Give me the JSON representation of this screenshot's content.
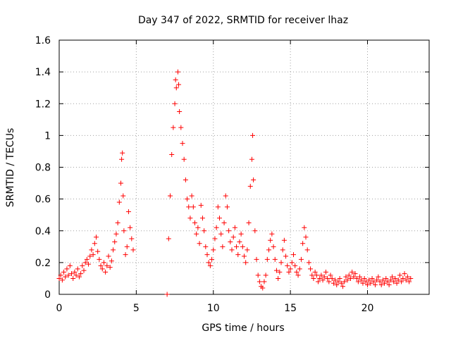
{
  "chart_data": {
    "type": "scatter",
    "title": "Day 347 of 2022, SRMTID for receiver lhaz",
    "xlabel": "GPS time / hours",
    "ylabel": "SRMTID / TECUs",
    "xlim": [
      0,
      24
    ],
    "ylim": [
      0,
      1.6
    ],
    "x_ticks": [
      "0",
      "5",
      "10",
      "15",
      "20"
    ],
    "x_tick_values": [
      0,
      5,
      10,
      15,
      20
    ],
    "y_ticks": [
      "0",
      "0.2",
      "0.4",
      "0.6",
      "0.8",
      "1",
      "1.2",
      "1.4",
      "1.6"
    ],
    "y_tick_values": [
      0,
      0.2,
      0.4,
      0.6,
      0.8,
      1.0,
      1.2,
      1.4,
      1.6
    ],
    "grid": true,
    "marker": "+",
    "series_color": "#ff0000",
    "series": [
      {
        "name": "SRMTID",
        "points": [
          [
            0.0,
            0.1
          ],
          [
            0.1,
            0.12
          ],
          [
            0.2,
            0.09
          ],
          [
            0.3,
            0.14
          ],
          [
            0.4,
            0.11
          ],
          [
            0.5,
            0.16
          ],
          [
            0.6,
            0.12
          ],
          [
            0.7,
            0.18
          ],
          [
            0.8,
            0.13
          ],
          [
            0.9,
            0.1
          ],
          [
            1.0,
            0.14
          ],
          [
            1.1,
            0.12
          ],
          [
            1.2,
            0.16
          ],
          [
            1.3,
            0.11
          ],
          [
            1.4,
            0.13
          ],
          [
            1.5,
            0.18
          ],
          [
            1.6,
            0.15
          ],
          [
            1.7,
            0.2
          ],
          [
            1.8,
            0.22
          ],
          [
            1.9,
            0.19
          ],
          [
            2.0,
            0.24
          ],
          [
            2.1,
            0.28
          ],
          [
            2.2,
            0.25
          ],
          [
            2.3,
            0.32
          ],
          [
            2.4,
            0.36
          ],
          [
            2.5,
            0.27
          ],
          [
            2.6,
            0.22
          ],
          [
            2.7,
            0.18
          ],
          [
            2.8,
            0.16
          ],
          [
            2.9,
            0.2
          ],
          [
            3.0,
            0.14
          ],
          [
            3.1,
            0.18
          ],
          [
            3.2,
            0.24
          ],
          [
            3.3,
            0.17
          ],
          [
            3.4,
            0.21
          ],
          [
            3.5,
            0.28
          ],
          [
            3.6,
            0.33
          ],
          [
            3.7,
            0.38
          ],
          [
            3.8,
            0.45
          ],
          [
            3.9,
            0.58
          ],
          [
            4.0,
            0.7
          ],
          [
            4.05,
            0.85
          ],
          [
            4.1,
            0.89
          ],
          [
            4.15,
            0.62
          ],
          [
            4.2,
            0.4
          ],
          [
            4.3,
            0.25
          ],
          [
            4.4,
            0.3
          ],
          [
            4.5,
            0.52
          ],
          [
            4.6,
            0.42
          ],
          [
            4.7,
            0.35
          ],
          [
            4.8,
            0.28
          ],
          [
            7.1,
            0.35
          ],
          [
            7.2,
            0.62
          ],
          [
            7.3,
            0.88
          ],
          [
            7.4,
            1.05
          ],
          [
            7.5,
            1.2
          ],
          [
            7.55,
            1.35
          ],
          [
            7.6,
            1.3
          ],
          [
            7.7,
            1.4
          ],
          [
            7.75,
            1.32
          ],
          [
            7.8,
            1.15
          ],
          [
            7.9,
            1.05
          ],
          [
            8.0,
            0.95
          ],
          [
            8.1,
            0.85
          ],
          [
            8.2,
            0.72
          ],
          [
            8.3,
            0.6
          ],
          [
            8.4,
            0.55
          ],
          [
            8.5,
            0.48
          ],
          [
            8.6,
            0.62
          ],
          [
            8.7,
            0.55
          ],
          [
            8.8,
            0.45
          ],
          [
            8.9,
            0.38
          ],
          [
            9.0,
            0.42
          ],
          [
            9.1,
            0.32
          ],
          [
            9.2,
            0.56
          ],
          [
            9.3,
            0.48
          ],
          [
            9.4,
            0.4
          ],
          [
            9.5,
            0.3
          ],
          [
            9.6,
            0.25
          ],
          [
            9.7,
            0.2
          ],
          [
            9.8,
            0.18
          ],
          [
            9.9,
            0.22
          ],
          [
            10.0,
            0.28
          ],
          [
            10.1,
            0.35
          ],
          [
            10.2,
            0.42
          ],
          [
            10.3,
            0.55
          ],
          [
            10.4,
            0.48
          ],
          [
            10.5,
            0.38
          ],
          [
            10.6,
            0.3
          ],
          [
            10.7,
            0.45
          ],
          [
            10.8,
            0.62
          ],
          [
            10.9,
            0.55
          ],
          [
            11.0,
            0.4
          ],
          [
            11.1,
            0.33
          ],
          [
            11.2,
            0.28
          ],
          [
            11.3,
            0.36
          ],
          [
            11.4,
            0.42
          ],
          [
            11.5,
            0.3
          ],
          [
            11.6,
            0.25
          ],
          [
            11.7,
            0.33
          ],
          [
            11.8,
            0.38
          ],
          [
            11.9,
            0.3
          ],
          [
            12.0,
            0.24
          ],
          [
            12.1,
            0.2
          ],
          [
            12.2,
            0.28
          ],
          [
            12.3,
            0.45
          ],
          [
            12.4,
            0.68
          ],
          [
            12.5,
            0.85
          ],
          [
            12.55,
            1.0
          ],
          [
            12.6,
            0.72
          ],
          [
            12.7,
            0.4
          ],
          [
            12.8,
            0.22
          ],
          [
            12.9,
            0.12
          ],
          [
            13.0,
            0.08
          ],
          [
            13.1,
            0.05
          ],
          [
            13.2,
            0.04
          ],
          [
            13.3,
            0.08
          ],
          [
            13.4,
            0.12
          ],
          [
            13.5,
            0.22
          ],
          [
            13.6,
            0.28
          ],
          [
            13.7,
            0.34
          ],
          [
            13.8,
            0.38
          ],
          [
            13.9,
            0.3
          ],
          [
            14.0,
            0.22
          ],
          [
            14.1,
            0.15
          ],
          [
            14.2,
            0.1
          ],
          [
            14.3,
            0.14
          ],
          [
            14.4,
            0.2
          ],
          [
            14.5,
            0.28
          ],
          [
            14.6,
            0.34
          ],
          [
            14.7,
            0.24
          ],
          [
            14.8,
            0.18
          ],
          [
            14.9,
            0.14
          ],
          [
            15.0,
            0.16
          ],
          [
            15.1,
            0.2
          ],
          [
            15.2,
            0.25
          ],
          [
            15.3,
            0.18
          ],
          [
            15.4,
            0.14
          ],
          [
            15.5,
            0.12
          ],
          [
            15.6,
            0.16
          ],
          [
            15.7,
            0.22
          ],
          [
            15.8,
            0.32
          ],
          [
            15.9,
            0.42
          ],
          [
            16.0,
            0.36
          ],
          [
            16.1,
            0.28
          ],
          [
            16.2,
            0.2
          ],
          [
            16.3,
            0.16
          ],
          [
            16.4,
            0.12
          ],
          [
            16.5,
            0.1
          ],
          [
            16.6,
            0.14
          ],
          [
            16.7,
            0.12
          ],
          [
            16.8,
            0.08
          ],
          [
            16.9,
            0.1
          ],
          [
            17.0,
            0.12
          ],
          [
            17.1,
            0.09
          ],
          [
            17.2,
            0.11
          ],
          [
            17.3,
            0.14
          ],
          [
            17.4,
            0.1
          ],
          [
            17.5,
            0.08
          ],
          [
            17.6,
            0.12
          ],
          [
            17.7,
            0.1
          ],
          [
            17.8,
            0.07
          ],
          [
            17.9,
            0.09
          ],
          [
            18.0,
            0.06
          ],
          [
            18.1,
            0.08
          ],
          [
            18.2,
            0.1
          ],
          [
            18.3,
            0.07
          ],
          [
            18.4,
            0.05
          ],
          [
            18.5,
            0.08
          ],
          [
            18.6,
            0.11
          ],
          [
            18.7,
            0.09
          ],
          [
            18.8,
            0.12
          ],
          [
            18.9,
            0.1
          ],
          [
            19.0,
            0.14
          ],
          [
            19.1,
            0.11
          ],
          [
            19.2,
            0.13
          ],
          [
            19.3,
            0.1
          ],
          [
            19.4,
            0.08
          ],
          [
            19.5,
            0.11
          ],
          [
            19.6,
            0.09
          ],
          [
            19.7,
            0.07
          ],
          [
            19.8,
            0.1
          ],
          [
            19.9,
            0.08
          ],
          [
            20.0,
            0.06
          ],
          [
            20.1,
            0.09
          ],
          [
            20.2,
            0.07
          ],
          [
            20.3,
            0.1
          ],
          [
            20.4,
            0.08
          ],
          [
            20.5,
            0.06
          ],
          [
            20.6,
            0.09
          ],
          [
            20.7,
            0.11
          ],
          [
            20.8,
            0.08
          ],
          [
            20.9,
            0.06
          ],
          [
            21.0,
            0.09
          ],
          [
            21.1,
            0.07
          ],
          [
            21.2,
            0.1
          ],
          [
            21.3,
            0.08
          ],
          [
            21.4,
            0.06
          ],
          [
            21.5,
            0.09
          ],
          [
            21.6,
            0.11
          ],
          [
            21.7,
            0.08
          ],
          [
            21.8,
            0.1
          ],
          [
            21.9,
            0.07
          ],
          [
            22.0,
            0.09
          ],
          [
            22.1,
            0.12
          ],
          [
            22.2,
            0.08
          ],
          [
            22.3,
            0.1
          ],
          [
            22.4,
            0.13
          ],
          [
            22.5,
            0.09
          ],
          [
            22.6,
            0.11
          ],
          [
            22.7,
            0.08
          ],
          [
            22.8,
            0.1
          ],
          [
            7.0,
            0.0
          ]
        ]
      }
    ]
  }
}
